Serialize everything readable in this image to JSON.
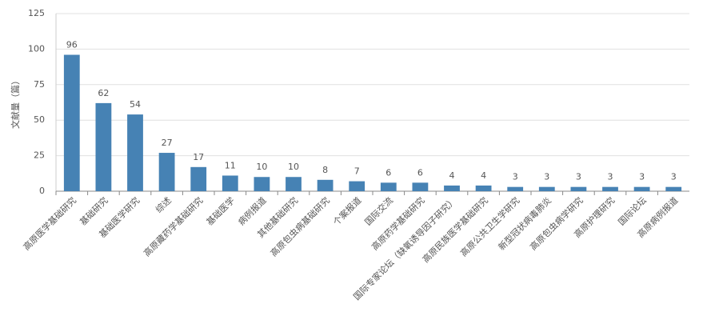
{
  "chart_data": {
    "type": "bar",
    "y_label": "文献量（篇）",
    "categories": [
      "高原医学基础研究",
      "基础研究",
      "基础医学研究",
      "综述",
      "高原藏药学基础研究",
      "基础医学",
      "病例报道",
      "其他基础研究",
      "高原包虫病基础研究",
      "个案报道",
      "国际交流",
      "高原药学基础研究",
      "国际专家论坛（缺氧诱导因子研究）",
      "高原民族医学基础研究",
      "高原公共卫生学研究",
      "新型冠状病毒肺炎",
      "高原包虫病学研究",
      "高原护理研究",
      "国际论坛",
      "高原病例报道"
    ],
    "values": [
      96,
      62,
      54,
      27,
      17,
      11,
      10,
      10,
      8,
      7,
      6,
      6,
      4,
      4,
      3,
      3,
      3,
      3,
      3,
      3
    ],
    "color": "#4682b4",
    "ylim": [
      0,
      125
    ],
    "yticks": [
      0,
      25,
      50,
      75,
      100,
      125
    ],
    "grid": true
  }
}
